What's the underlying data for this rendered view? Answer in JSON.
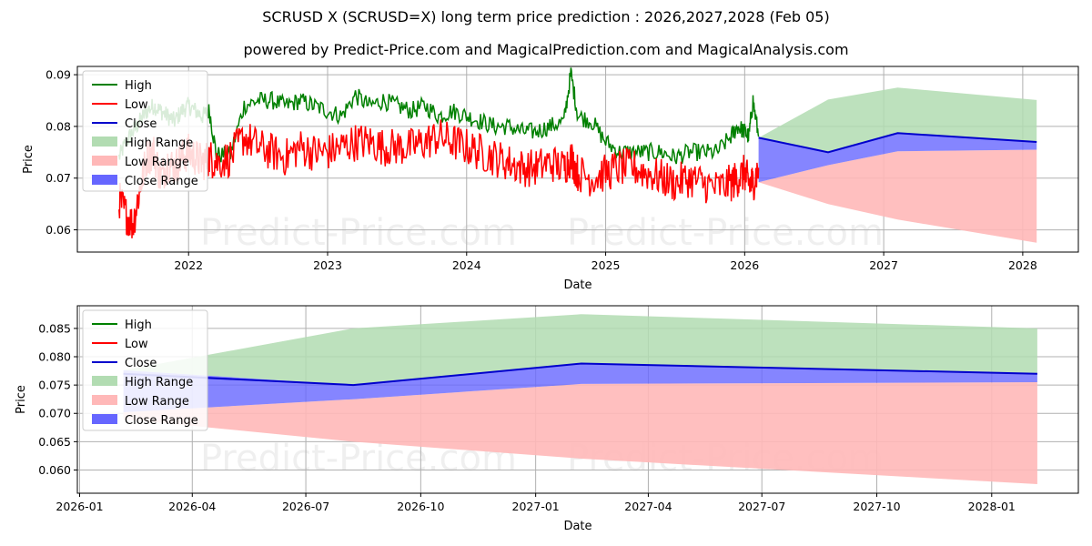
{
  "title": "SCRUSD X (SCRUSD=X) long term price prediction : 2026,2027,2028 (Feb 05)",
  "subtitle": "powered by Predict-Price.com and MagicalPrediction.com and MagicalAnalysis.com",
  "watermark": "Predict-Price.com",
  "colors": {
    "high": "#008000",
    "low": "#ff0000",
    "close": "#0000cc",
    "high_range": "#b2dcb2",
    "low_range": "#ffb8b8",
    "close_range": "#6666ff",
    "grid": "#b0b0b0"
  },
  "chart_data": [
    {
      "type": "line",
      "title": "",
      "xlabel": "Date",
      "ylabel": "Price",
      "grid": true,
      "legend_position": "top-left",
      "xlim": [
        2021.2,
        2028.4
      ],
      "ylim": [
        0.0557,
        0.0916
      ],
      "x_ticks": [
        {
          "value": 2022,
          "label": "2022"
        },
        {
          "value": 2023,
          "label": "2023"
        },
        {
          "value": 2024,
          "label": "2024"
        },
        {
          "value": 2025,
          "label": "2025"
        },
        {
          "value": 2026,
          "label": "2026"
        },
        {
          "value": 2027,
          "label": "2027"
        },
        {
          "value": 2028,
          "label": "2028"
        }
      ],
      "y_ticks": [
        {
          "value": 0.06,
          "label": "0.06"
        },
        {
          "value": 0.07,
          "label": "0.07"
        },
        {
          "value": 0.08,
          "label": "0.08"
        },
        {
          "value": 0.09,
          "label": "0.09"
        }
      ],
      "legend": [
        "High",
        "Low",
        "Close",
        "High Range",
        "Low Range",
        "Close Range"
      ],
      "history": {
        "x": [
          2021.5,
          2021.55,
          2021.6,
          2021.65,
          2021.7,
          2021.75,
          2021.8,
          2021.85,
          2021.9,
          2021.95,
          2022.0,
          2022.05,
          2022.1,
          2022.15,
          2022.2,
          2022.3,
          2022.4,
          2022.5,
          2022.6,
          2022.7,
          2022.8,
          2022.9,
          2023.0,
          2023.1,
          2023.2,
          2023.3,
          2023.4,
          2023.5,
          2023.6,
          2023.7,
          2023.8,
          2023.9,
          2024.0,
          2024.1,
          2024.2,
          2024.3,
          2024.4,
          2024.5,
          2024.6,
          2024.7,
          2024.75,
          2024.8,
          2024.9,
          2025.0,
          2025.1,
          2025.2,
          2025.3,
          2025.4,
          2025.5,
          2025.6,
          2025.7,
          2025.8,
          2025.9,
          2025.95,
          2026.0,
          2026.03,
          2026.06,
          2026.1
        ],
        "high": [
          0.074,
          0.077,
          0.079,
          0.081,
          0.083,
          0.084,
          0.083,
          0.082,
          0.081,
          0.083,
          0.084,
          0.083,
          0.082,
          0.083,
          0.0745,
          0.0745,
          0.084,
          0.085,
          0.085,
          0.084,
          0.085,
          0.084,
          0.083,
          0.082,
          0.086,
          0.084,
          0.085,
          0.084,
          0.083,
          0.084,
          0.082,
          0.083,
          0.082,
          0.081,
          0.08,
          0.08,
          0.079,
          0.079,
          0.08,
          0.081,
          0.0903,
          0.082,
          0.081,
          0.077,
          0.075,
          0.075,
          0.075,
          0.075,
          0.074,
          0.075,
          0.075,
          0.075,
          0.078,
          0.08,
          0.079,
          0.078,
          0.085,
          0.078
        ],
        "low": [
          0.066,
          0.063,
          0.061,
          0.068,
          0.074,
          0.075,
          0.07,
          0.073,
          0.072,
          0.074,
          0.075,
          0.074,
          0.073,
          0.074,
          0.073,
          0.074,
          0.078,
          0.076,
          0.075,
          0.074,
          0.076,
          0.075,
          0.075,
          0.076,
          0.077,
          0.077,
          0.076,
          0.076,
          0.076,
          0.077,
          0.078,
          0.077,
          0.076,
          0.075,
          0.074,
          0.073,
          0.072,
          0.072,
          0.073,
          0.072,
          0.074,
          0.071,
          0.07,
          0.071,
          0.072,
          0.072,
          0.071,
          0.07,
          0.069,
          0.07,
          0.069,
          0.068,
          0.069,
          0.07,
          0.071,
          0.069,
          0.069,
          0.072
        ]
      },
      "forecast": {
        "x": [
          2026.1,
          2026.6,
          2027.1,
          2028.1
        ],
        "close": [
          0.0778,
          0.075,
          0.0787,
          0.077
        ],
        "high_range_upper": [
          0.0778,
          0.0852,
          0.0875,
          0.0851
        ],
        "low_range_lower": [
          0.0692,
          0.065,
          0.062,
          0.0575
        ],
        "close_range_upper": [
          0.0778,
          0.075,
          0.0787,
          0.077
        ],
        "close_range_lower": [
          0.0692,
          0.0725,
          0.0752,
          0.0755
        ]
      }
    },
    {
      "type": "line",
      "title": "",
      "xlabel": "Date",
      "ylabel": "Price",
      "grid": true,
      "legend_position": "top-left",
      "xlim": [
        2025.995,
        2028.19
      ],
      "ylim": [
        0.0559,
        0.089
      ],
      "x_ticks": [
        {
          "value": 2026.0,
          "label": "2026-01"
        },
        {
          "value": 2026.247,
          "label": "2026-04"
        },
        {
          "value": 2026.496,
          "label": "2026-07"
        },
        {
          "value": 2026.748,
          "label": "2026-10"
        },
        {
          "value": 2027.0,
          "label": "2027-01"
        },
        {
          "value": 2027.247,
          "label": "2027-04"
        },
        {
          "value": 2027.496,
          "label": "2027-07"
        },
        {
          "value": 2027.748,
          "label": "2027-10"
        },
        {
          "value": 2028.0,
          "label": "2028-01"
        }
      ],
      "y_ticks": [
        {
          "value": 0.06,
          "label": "0.060"
        },
        {
          "value": 0.065,
          "label": "0.065"
        },
        {
          "value": 0.07,
          "label": "0.070"
        },
        {
          "value": 0.075,
          "label": "0.075"
        },
        {
          "value": 0.08,
          "label": "0.080"
        },
        {
          "value": 0.085,
          "label": "0.085"
        }
      ],
      "legend": [
        "High",
        "Low",
        "Close",
        "High Range",
        "Low Range",
        "Close Range"
      ],
      "forecast": {
        "x": [
          2026.096,
          2026.6,
          2027.1,
          2028.1
        ],
        "close": [
          0.077,
          0.075,
          0.0788,
          0.077
        ],
        "high_range_upper": [
          0.0776,
          0.085,
          0.0875,
          0.085
        ],
        "low_range_lower": [
          0.069,
          0.065,
          0.062,
          0.0575
        ],
        "close_range_upper": [
          0.0776,
          0.075,
          0.0788,
          0.077
        ],
        "close_range_lower": [
          0.0702,
          0.0725,
          0.0752,
          0.0755
        ]
      }
    }
  ]
}
